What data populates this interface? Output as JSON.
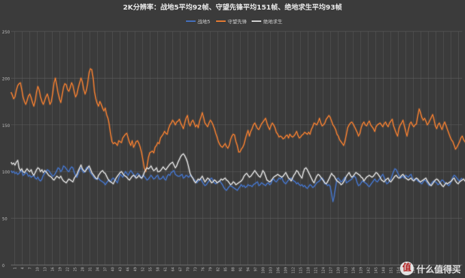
{
  "chart_data": {
    "type": "line",
    "title": "2K分辨率：战地5平均92帧、守望先锋平均151帧、绝地求生平均93帧",
    "xlabel": "",
    "ylabel": "",
    "ylim": [
      0,
      250
    ],
    "yticks": [
      0,
      50,
      100,
      150,
      200,
      250
    ],
    "grid": true,
    "legend_position": "top",
    "x_tick_labels": [
      "1",
      "4",
      "7",
      "10",
      "13",
      "16",
      "19",
      "22",
      "25",
      "28",
      "31",
      "34",
      "37",
      "40",
      "43",
      "46",
      "49",
      "52",
      "55",
      "58",
      "61",
      "64",
      "67",
      "70",
      "73",
      "76",
      "79",
      "82",
      "85",
      "88",
      "91",
      "94",
      "97",
      "100",
      "103",
      "106",
      "109",
      "112",
      "115",
      "118",
      "121",
      "124",
      "127",
      "130",
      "133",
      "136",
      "139",
      "142",
      "145",
      "148",
      "151",
      "154",
      "157",
      "160",
      "163",
      "166",
      "169",
      "172",
      "175",
      "178"
    ],
    "colors": {
      "background": "#3b3b3b",
      "gridline": "#5a5a5a",
      "axis_text": "#bfbfbf",
      "title_text": "#e8e8e8"
    },
    "series": [
      {
        "name": "战地5",
        "color": "#4472c4",
        "values": [
          101,
          99,
          100,
          98,
          99,
          97,
          98,
          100,
          101,
          96,
          97,
          99,
          98,
          95,
          96,
          94,
          95,
          96,
          93,
          92,
          94,
          91,
          90,
          92,
          96,
          98,
          100,
          102,
          101,
          99,
          97,
          95,
          96,
          98,
          101,
          104,
          103,
          100,
          102,
          106,
          105,
          103,
          101,
          100,
          103,
          105,
          104,
          99,
          96,
          94,
          98,
          102,
          104,
          101,
          99,
          100,
          104,
          105,
          102,
          99,
          97,
          95,
          93,
          92,
          92,
          93,
          91,
          90,
          89,
          88,
          86,
          88,
          90,
          91,
          89,
          92,
          93,
          91,
          90,
          88,
          93,
          97,
          96,
          94,
          97,
          100,
          98,
          96,
          99,
          101,
          99,
          97,
          94,
          96,
          98,
          97,
          95,
          93,
          96,
          95,
          93,
          91,
          92,
          94,
          96,
          94,
          92,
          93,
          95,
          96,
          92,
          92,
          93,
          95,
          92,
          91,
          95,
          97,
          96,
          99,
          100,
          101,
          97,
          96,
          95,
          95,
          96,
          97,
          93,
          94,
          96,
          95,
          94,
          96,
          95,
          93,
          91,
          90,
          88,
          90,
          91,
          92,
          89,
          87,
          85,
          86,
          88,
          90,
          92,
          93,
          90,
          88,
          87,
          88,
          89,
          90,
          88,
          86,
          83,
          81,
          80,
          82,
          84,
          85,
          84,
          83,
          82,
          81,
          80,
          82,
          84,
          86,
          84,
          85,
          83,
          84,
          86,
          85,
          85,
          84,
          86,
          87,
          88,
          89,
          85,
          86,
          88,
          87,
          86,
          85,
          87,
          88,
          86,
          87,
          91,
          92,
          90,
          89,
          91,
          93,
          92,
          94,
          90,
          88,
          87,
          89,
          91,
          92,
          93,
          91,
          90,
          89,
          87,
          88,
          86,
          85,
          86,
          84,
          85,
          83,
          82,
          84,
          86,
          85,
          83,
          84,
          86,
          88,
          89,
          90,
          92,
          93,
          91,
          87,
          87,
          85,
          86,
          84,
          76,
          68,
          74,
          84,
          92,
          93,
          91,
          89,
          90,
          92,
          94,
          88,
          89,
          90,
          91,
          92,
          94,
          95,
          93,
          88,
          85,
          86,
          88,
          90,
          89,
          88,
          87,
          85,
          84,
          86,
          88,
          90,
          92,
          90,
          89,
          91,
          93,
          95,
          97,
          94,
          90,
          87,
          88,
          90,
          92,
          96,
          100,
          103,
          102,
          99,
          96,
          93,
          94,
          95,
          93,
          96,
          95,
          94,
          96,
          97,
          93,
          91,
          91,
          92,
          90,
          89,
          88,
          87,
          89,
          91,
          90,
          88,
          86,
          85,
          87,
          89,
          90,
          89,
          88,
          86,
          87,
          89,
          91,
          90,
          88,
          87,
          86,
          85,
          87,
          90,
          94,
          96,
          95,
          93,
          91,
          90,
          92,
          93
        ]
      },
      {
        "name": "守望先锋",
        "color": "#ed7d31",
        "values": [
          185,
          182,
          178,
          180,
          187,
          192,
          194,
          195,
          188,
          180,
          175,
          172,
          176,
          181,
          183,
          179,
          174,
          170,
          176,
          185,
          191,
          187,
          180,
          175,
          172,
          176,
          180,
          183,
          178,
          172,
          175,
          184,
          195,
          200,
          192,
          184,
          178,
          174,
          182,
          190,
          194,
          193,
          188,
          186,
          190,
          195,
          192,
          185,
          180,
          183,
          190,
          195,
          200,
          196,
          188,
          183,
          187,
          195,
          206,
          210,
          209,
          200,
          186,
          178,
          173,
          170,
          175,
          172,
          168,
          165,
          168,
          161,
          157,
          150,
          140,
          132,
          130,
          131,
          130,
          128,
          133,
          132,
          131,
          136,
          138,
          140,
          141,
          136,
          131,
          128,
          133,
          126,
          129,
          132,
          133,
          130,
          126,
          120,
          112,
          104,
          100,
          106,
          115,
          120,
          121,
          122,
          120,
          126,
          128,
          131,
          130,
          136,
          138,
          140,
          143,
          141,
          140,
          146,
          150,
          152,
          155,
          153,
          150,
          153,
          154,
          156,
          152,
          149,
          146,
          152,
          157,
          160,
          152,
          149,
          153,
          155,
          152,
          148,
          150,
          147,
          154,
          158,
          163,
          158,
          152,
          150,
          148,
          152,
          155,
          153,
          150,
          146,
          141,
          137,
          132,
          129,
          127,
          126,
          128,
          130,
          127,
          125,
          128,
          134,
          138,
          140,
          139,
          132,
          128,
          121,
          121,
          124,
          126,
          129,
          135,
          140,
          144,
          138,
          143,
          146,
          150,
          152,
          149,
          146,
          145,
          148,
          151,
          153,
          155,
          157,
          152,
          148,
          145,
          149,
          152,
          150,
          147,
          142,
          140,
          137,
          138,
          137,
          135,
          136,
          138,
          139,
          136,
          140,
          138,
          137,
          138,
          140,
          143,
          139,
          136,
          137,
          139,
          140,
          142,
          141,
          140,
          142,
          140,
          145,
          148,
          152,
          151,
          150,
          153,
          157,
          152,
          149,
          150,
          152,
          156,
          158,
          160,
          158,
          154,
          150,
          148,
          145,
          140,
          138,
          134,
          132,
          130,
          128,
          133,
          140,
          147,
          150,
          152,
          153,
          151,
          148,
          145,
          142,
          138,
          141,
          147,
          151,
          153,
          150,
          149,
          152,
          154,
          150,
          148,
          146,
          143,
          148,
          150,
          151,
          152,
          150,
          148,
          151,
          153,
          150,
          148,
          152,
          154,
          156,
          149,
          145,
          141,
          138,
          146,
          150,
          152,
          155,
          149,
          143,
          138,
          145,
          151,
          153,
          150,
          148,
          150,
          151,
          160,
          167,
          163,
          158,
          155,
          157,
          154,
          150,
          152,
          155,
          158,
          161,
          156,
          149,
          146,
          150,
          152,
          148,
          145,
          150,
          153,
          149,
          145,
          141,
          137,
          134,
          132,
          128,
          124,
          126,
          129,
          132,
          136,
          138,
          134,
          132,
          130,
          132,
          137,
          140,
          144,
          145,
          142,
          144,
          147,
          150,
          152,
          149,
          148,
          150,
          153,
          156,
          153,
          150,
          149,
          151,
          150,
          148,
          150,
          152,
          155,
          154
        ]
      },
      {
        "name": "绝地求生",
        "color": "#d9d9d9",
        "values": [
          110,
          108,
          109,
          107,
          110,
          112,
          104,
          101,
          103,
          100,
          99,
          101,
          103,
          101,
          100,
          102,
          98,
          96,
          99,
          102,
          104,
          103,
          100,
          102,
          99,
          101,
          100,
          98,
          96,
          95,
          94,
          92,
          91,
          93,
          95,
          94,
          93,
          95,
          92,
          90,
          89,
          88,
          90,
          92,
          91,
          90,
          89,
          93,
          95,
          97,
          101,
          104,
          107,
          103,
          101,
          100,
          102,
          104,
          106,
          103,
          99,
          97,
          95,
          93,
          92,
          96,
          98,
          100,
          101,
          99,
          98,
          95,
          92,
          90,
          89,
          88,
          87,
          90,
          93,
          95,
          97,
          99,
          100,
          98,
          96,
          95,
          94,
          92,
          91,
          93,
          95,
          96,
          95,
          93,
          94,
          96,
          94,
          93,
          95,
          99,
          102,
          104,
          103,
          104,
          106,
          103,
          101,
          102,
          104,
          100,
          100,
          101,
          103,
          105,
          103,
          102,
          104,
          106,
          108,
          109,
          110,
          107,
          104,
          106,
          110,
          113,
          116,
          118,
          119,
          117,
          114,
          110,
          104,
          98,
          95,
          93,
          90,
          88,
          90,
          92,
          91,
          93,
          95,
          92,
          89,
          91,
          93,
          92,
          90,
          88,
          89,
          91,
          90,
          88,
          89,
          90,
          92,
          91,
          92,
          93,
          91,
          90,
          88,
          86,
          87,
          89,
          88,
          86,
          87,
          88,
          89,
          90,
          92,
          95,
          97,
          98,
          96,
          94,
          95,
          97,
          99,
          101,
          99,
          97,
          95,
          94,
          97,
          101,
          99,
          95,
          91,
          90,
          89,
          90,
          92,
          94,
          95,
          96,
          97,
          96,
          95,
          94,
          95,
          97,
          99,
          96,
          93,
          92,
          90,
          93,
          96,
          98,
          101,
          100,
          97,
          95,
          93,
          99,
          103,
          104,
          102,
          99,
          96,
          93,
          90,
          88,
          92,
          95,
          97,
          96,
          94,
          92,
          90,
          88,
          87,
          89,
          92,
          95,
          98,
          96,
          95,
          92,
          90,
          89,
          88,
          86,
          87,
          89,
          92,
          95,
          97,
          99,
          96,
          94,
          95,
          97,
          99,
          98,
          97,
          96,
          94,
          93,
          90,
          92,
          94,
          95,
          96,
          95,
          94,
          95,
          97,
          99,
          98,
          96,
          94,
          91,
          90,
          89,
          91,
          92,
          93,
          90,
          89,
          91,
          93,
          95,
          96,
          94,
          93,
          94,
          96,
          97,
          95,
          93,
          92,
          91,
          92,
          93,
          91,
          90,
          92,
          93,
          92,
          90,
          89,
          90,
          91,
          92,
          93,
          90,
          88,
          86,
          85,
          87,
          89,
          91,
          92,
          91,
          89,
          87,
          85,
          84,
          86,
          88,
          87,
          88,
          89,
          90,
          92,
          93,
          90,
          88,
          87,
          89,
          90,
          91,
          92,
          90,
          89,
          88,
          89,
          90,
          89
        ]
      }
    ]
  },
  "watermark": {
    "badge_glyph": "值",
    "text": "什么值得买"
  }
}
